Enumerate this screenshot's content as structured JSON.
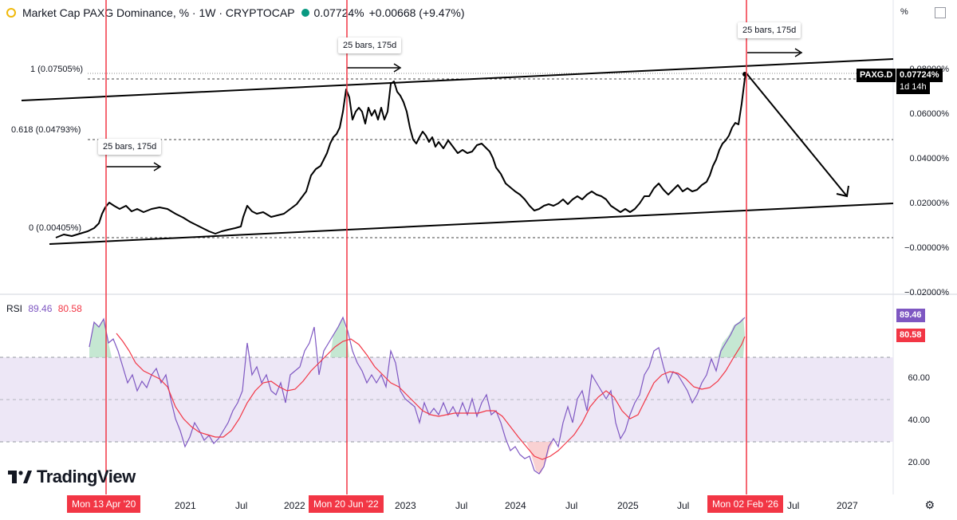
{
  "header": {
    "title": "Market Cap PAXG Dominance, % · 1W · CRYPTOCAP",
    "value": "0.07724%",
    "change": "+0.00668 (+9.47%)"
  },
  "scale_button": "%",
  "fib_levels": [
    {
      "label": "1 (0.07505%)"
    },
    {
      "label": "0.618 (0.04793%)"
    },
    {
      "label": "0 (0.00405%)"
    }
  ],
  "price_axis": [
    {
      "label": "0.08000%"
    },
    {
      "label": "0.06000%"
    },
    {
      "label": "0.04000%"
    },
    {
      "label": "0.02000%"
    },
    {
      "label": "−0.00000%"
    },
    {
      "label": "−0.02000%"
    }
  ],
  "last_price": {
    "symbol": "PAXG.D",
    "value": "0.07724%",
    "countdown": "1d 14h"
  },
  "callouts": [
    {
      "text": "25 bars, 175d"
    },
    {
      "text": "25 bars, 175d"
    },
    {
      "text": "25 bars, 175d"
    }
  ],
  "rsi": {
    "label": "RSI",
    "value": "89.46",
    "ma_value": "80.58",
    "axis": [
      "60.00",
      "40.00",
      "20.00"
    ],
    "value_color": "#7e57c2",
    "ma_color": "#f23645"
  },
  "time_axis": [
    "2021",
    "Jul",
    "2022",
    "2023",
    "Jul",
    "2024",
    "Jul",
    "2025",
    "Jul",
    "Jul",
    "2027"
  ],
  "date_badges": [
    "Mon 13 Apr '20",
    "Mon 20 Jun '22",
    "Mon 02 Feb '26"
  ],
  "brand": {
    "name": "TradingView"
  },
  "colors": {
    "vline": "#f23645",
    "rsi_line": "#7e57c2",
    "rsi_ma": "#f23645",
    "rsi_band": "#ede7f6"
  }
}
